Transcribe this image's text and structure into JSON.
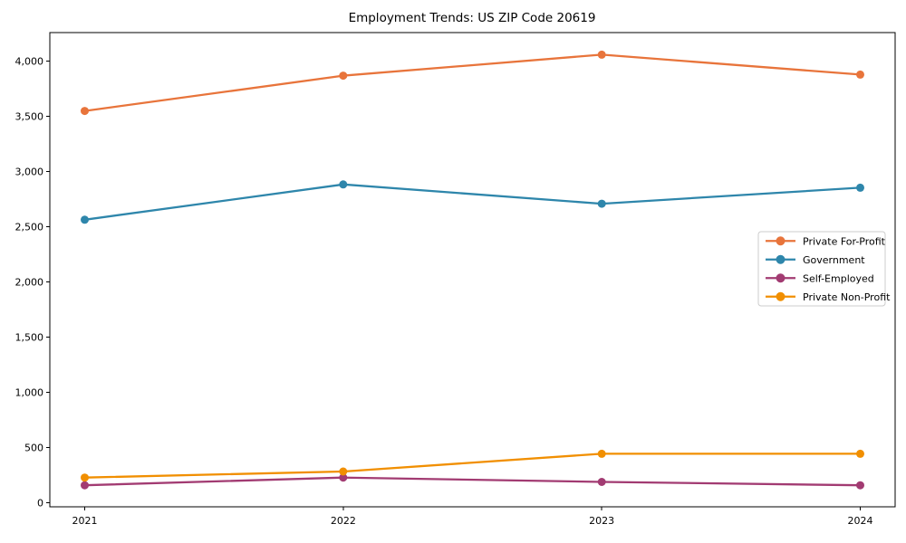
{
  "chart_data": {
    "type": "line",
    "title": "Employment Trends: US ZIP Code 20619",
    "xlabel": "",
    "ylabel": "",
    "x": [
      2021,
      2022,
      2023,
      2024
    ],
    "series": [
      {
        "name": "Private For-Profit",
        "color": "#E8743B",
        "values": [
          3550,
          3870,
          4060,
          3880
        ]
      },
      {
        "name": "Government",
        "color": "#2E86AB",
        "values": [
          2565,
          2885,
          2710,
          2855
        ]
      },
      {
        "name": "Self-Employed",
        "color": "#A23B72",
        "values": [
          160,
          230,
          190,
          160
        ]
      },
      {
        "name": "Private Non-Profit",
        "color": "#F18F01",
        "values": [
          230,
          285,
          445,
          445
        ]
      }
    ],
    "ylim": [
      -35,
      4260
    ],
    "yticks": [
      0,
      500,
      1000,
      1500,
      2000,
      2500,
      3000,
      3500,
      4000
    ],
    "ytick_format": "thousands-comma",
    "grid": false,
    "marker": "circle",
    "legend": {
      "position": "center-right",
      "border_color": "#cccccc",
      "background": "#ffffff",
      "entries": [
        "Private For-Profit",
        "Government",
        "Self-Employed",
        "Private Non-Profit"
      ]
    },
    "colors": {
      "axes": "#000000",
      "text": "#000000",
      "background": "#ffffff"
    }
  }
}
